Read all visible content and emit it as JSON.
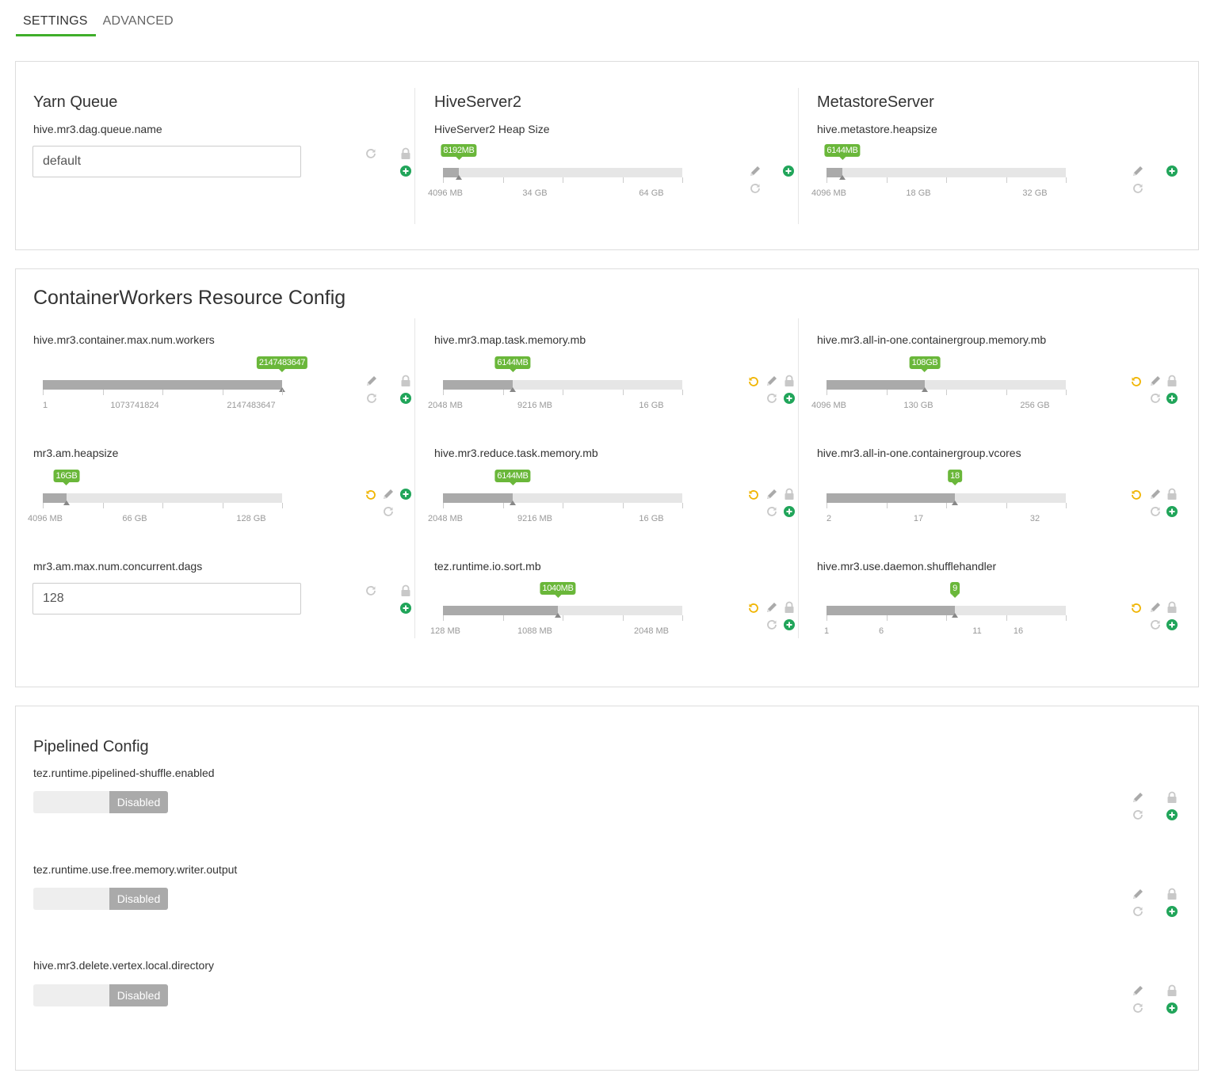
{
  "tabs": [
    {
      "label": "SETTINGS"
    },
    {
      "label": "ADVANCED"
    }
  ],
  "panel1": {
    "yarn": {
      "title": "Yarn Queue",
      "label": "hive.mr3.dag.queue.name",
      "value": "default"
    },
    "hs2": {
      "title": "HiveServer2",
      "label": "HiveServer2 Heap Size",
      "bubble": "8192MB",
      "ticks": [
        "4096 MB",
        "34 GB",
        "64 GB"
      ],
      "level": 0.066
    },
    "ms": {
      "title": "MetastoreServer",
      "label": "hive.metastore.heapsize",
      "bubble": "6144MB",
      "ticks": [
        "4096 MB",
        "18 GB",
        "32 GB"
      ],
      "level": 0.066
    }
  },
  "panel2": {
    "title": "ContainerWorkers Resource Config",
    "max_workers": {
      "label": "hive.mr3.container.max.num.workers",
      "bubble": "2147483647",
      "ticks": [
        "1",
        "1073741824",
        "2147483647"
      ],
      "level": 1.0
    },
    "map_mem": {
      "label": "hive.mr3.map.task.memory.mb",
      "bubble": "6144MB",
      "ticks": [
        "2048 MB",
        "9216 MB",
        "16 GB"
      ],
      "level": 0.29
    },
    "aio_mem": {
      "label": "hive.mr3.all-in-one.containergroup.memory.mb",
      "bubble": "108GB",
      "ticks": [
        "4096 MB",
        "130 GB",
        "256 GB"
      ],
      "level": 0.41
    },
    "am_heap": {
      "label": "mr3.am.heapsize",
      "bubble": "16GB",
      "ticks": [
        "4096 MB",
        "66 GB",
        "128 GB"
      ],
      "level": 0.1
    },
    "reduce_mem": {
      "label": "hive.mr3.reduce.task.memory.mb",
      "bubble": "6144MB",
      "ticks": [
        "2048 MB",
        "9216 MB",
        "16 GB"
      ],
      "level": 0.29
    },
    "aio_vcores": {
      "label": "hive.mr3.all-in-one.containergroup.vcores",
      "bubble": "18",
      "ticks": [
        "2",
        "17",
        "32"
      ],
      "level": 0.535
    },
    "dags": {
      "label": "mr3.am.max.num.concurrent.dags",
      "value": "128"
    },
    "sort_mb": {
      "label": "tez.runtime.io.sort.mb",
      "bubble": "1040MB",
      "ticks": [
        "128 MB",
        "1088 MB",
        "2048 MB"
      ],
      "level": 0.48
    },
    "shuffle": {
      "label": "hive.mr3.use.daemon.shufflehandler",
      "bubble": "9",
      "ticks": [
        "1",
        "6",
        "11",
        "16"
      ],
      "level": 0.535
    }
  },
  "panel3": {
    "title": "Pipelined Config",
    "items": [
      {
        "label": "tez.runtime.pipelined-shuffle.enabled",
        "state": "Disabled"
      },
      {
        "label": "tez.runtime.use.free.memory.writer.output",
        "state": "Disabled"
      },
      {
        "label": "hive.mr3.delete.vertex.local.directory",
        "state": "Disabled"
      }
    ]
  },
  "colors": {
    "accent": "#3fae2a",
    "bubble": "#6ab73a",
    "undo": "#f0b400",
    "add": "#21a55a"
  }
}
